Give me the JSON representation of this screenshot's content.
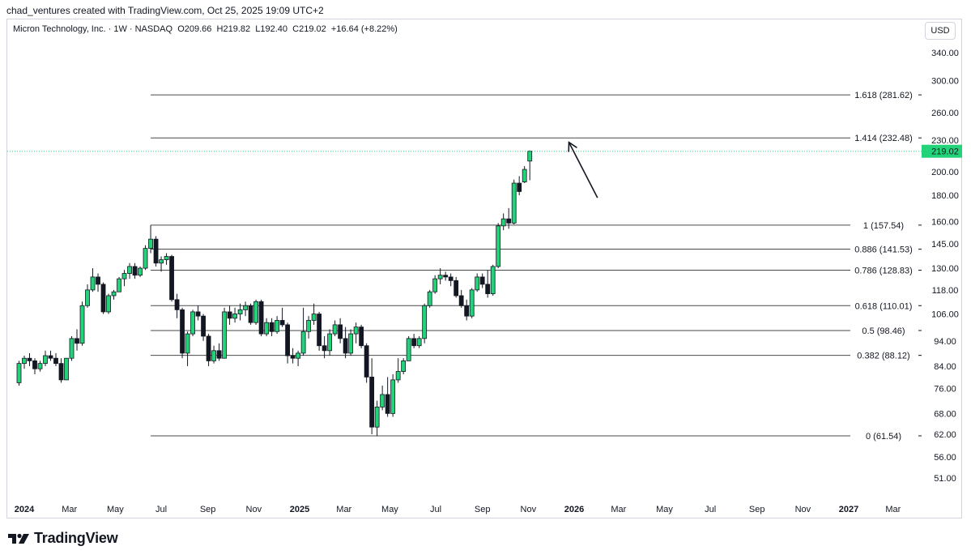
{
  "header": {
    "credit": "chad_ventures created with TradingView.com, Oct 25, 2025 19:09 UTC+2"
  },
  "legend": {
    "symbol": "Micron Technology, Inc.",
    "interval": "1W",
    "exchange": "NASDAQ",
    "open": "O209.66",
    "high": "H219.82",
    "low": "L192.40",
    "close": "C219.02",
    "change": "+16.64 (+8.22%)"
  },
  "currency": "USD",
  "footer": {
    "brand": "TradingView"
  },
  "colors": {
    "up": "#22d37a",
    "down": "#131722",
    "text": "#131722",
    "fib": "#4a4a4a",
    "price_badge": "#22d37a"
  },
  "chart_data": {
    "type": "candlestick",
    "interval": "1W",
    "y_scale": "log",
    "ylim": [
      47,
      390
    ],
    "y_ticks": [
      340.0,
      300.0,
      260.0,
      230.0,
      200.0,
      180.0,
      160.0,
      145.0,
      130.0,
      118.0,
      106.0,
      94.0,
      84.0,
      76.0,
      68.0,
      62.0,
      56.0,
      51.0
    ],
    "x_labels": [
      {
        "label": "2024",
        "date": "2024-01-01",
        "bold": true
      },
      {
        "label": "Mar",
        "date": "2024-03-01",
        "bold": false
      },
      {
        "label": "May",
        "date": "2024-05-01",
        "bold": false
      },
      {
        "label": "Jul",
        "date": "2024-07-01",
        "bold": false
      },
      {
        "label": "Sep",
        "date": "2024-09-01",
        "bold": false
      },
      {
        "label": "Nov",
        "date": "2024-11-01",
        "bold": false
      },
      {
        "label": "2025",
        "date": "2025-01-01",
        "bold": true
      },
      {
        "label": "Mar",
        "date": "2025-03-01",
        "bold": false
      },
      {
        "label": "May",
        "date": "2025-05-01",
        "bold": false
      },
      {
        "label": "Jul",
        "date": "2025-07-01",
        "bold": false
      },
      {
        "label": "Sep",
        "date": "2025-09-01",
        "bold": false
      },
      {
        "label": "Nov",
        "date": "2025-11-01",
        "bold": false
      },
      {
        "label": "2026",
        "date": "2026-01-01",
        "bold": true
      },
      {
        "label": "Mar",
        "date": "2026-03-01",
        "bold": false
      },
      {
        "label": "May",
        "date": "2026-05-01",
        "bold": false
      },
      {
        "label": "Jul",
        "date": "2026-07-01",
        "bold": false
      },
      {
        "label": "Sep",
        "date": "2026-09-01",
        "bold": false
      },
      {
        "label": "Nov",
        "date": "2026-11-01",
        "bold": false
      },
      {
        "label": "2027",
        "date": "2027-01-01",
        "bold": true
      },
      {
        "label": "Mar",
        "date": "2027-03-01",
        "bold": false
      }
    ],
    "last_price": "219.02",
    "fib_start_date": "2024-06-17",
    "fib_levels": [
      {
        "label": "1.618 (281.62)",
        "value": 281.62
      },
      {
        "label": "1.414 (232.48)",
        "value": 232.48
      },
      {
        "label": "1 (157.54)",
        "value": 157.54
      },
      {
        "label": "0.886 (141.53)",
        "value": 141.53
      },
      {
        "label": "0.786 (128.83)",
        "value": 128.83
      },
      {
        "label": "0.618 (110.01)",
        "value": 110.01
      },
      {
        "label": "0.5 (98.46)",
        "value": 98.46
      },
      {
        "label": "0.382 (88.12)",
        "value": 88.12
      },
      {
        "label": "0 (61.54)",
        "value": 61.54
      }
    ],
    "arrow": {
      "from_date": "2026-02-01",
      "from_value": 178,
      "to_date": "2025-12-25",
      "to_value": 228
    },
    "candles": [
      {
        "date": "2023-12-25",
        "o": 78,
        "h": 86,
        "l": 77,
        "c": 85
      },
      {
        "date": "2024-01-01",
        "o": 85,
        "h": 88,
        "l": 83,
        "c": 87
      },
      {
        "date": "2024-01-08",
        "o": 87,
        "h": 89,
        "l": 84,
        "c": 86
      },
      {
        "date": "2024-01-15",
        "o": 86,
        "h": 87,
        "l": 81,
        "c": 83
      },
      {
        "date": "2024-01-22",
        "o": 83,
        "h": 86,
        "l": 82,
        "c": 85
      },
      {
        "date": "2024-01-29",
        "o": 85,
        "h": 90,
        "l": 84,
        "c": 88
      },
      {
        "date": "2024-02-05",
        "o": 88,
        "h": 90,
        "l": 86,
        "c": 87
      },
      {
        "date": "2024-02-12",
        "o": 87,
        "h": 89,
        "l": 84,
        "c": 85
      },
      {
        "date": "2024-02-19",
        "o": 85,
        "h": 87,
        "l": 78,
        "c": 79
      },
      {
        "date": "2024-02-26",
        "o": 79,
        "h": 87,
        "l": 79,
        "c": 87
      },
      {
        "date": "2024-03-04",
        "o": 87,
        "h": 96,
        "l": 86,
        "c": 95
      },
      {
        "date": "2024-03-11",
        "o": 95,
        "h": 99,
        "l": 90,
        "c": 93
      },
      {
        "date": "2024-03-18",
        "o": 93,
        "h": 112,
        "l": 92,
        "c": 110
      },
      {
        "date": "2024-03-25",
        "o": 110,
        "h": 121,
        "l": 109,
        "c": 118
      },
      {
        "date": "2024-04-01",
        "o": 118,
        "h": 130,
        "l": 117,
        "c": 125
      },
      {
        "date": "2024-04-08",
        "o": 125,
        "h": 127,
        "l": 117,
        "c": 121
      },
      {
        "date": "2024-04-15",
        "o": 121,
        "h": 122,
        "l": 106,
        "c": 107
      },
      {
        "date": "2024-04-22",
        "o": 107,
        "h": 116,
        "l": 106,
        "c": 115
      },
      {
        "date": "2024-04-29",
        "o": 115,
        "h": 118,
        "l": 113,
        "c": 117
      },
      {
        "date": "2024-05-06",
        "o": 117,
        "h": 125,
        "l": 117,
        "c": 124
      },
      {
        "date": "2024-05-13",
        "o": 124,
        "h": 129,
        "l": 120,
        "c": 127
      },
      {
        "date": "2024-05-20",
        "o": 127,
        "h": 133,
        "l": 124,
        "c": 131
      },
      {
        "date": "2024-05-27",
        "o": 131,
        "h": 133,
        "l": 124,
        "c": 126
      },
      {
        "date": "2024-06-03",
        "o": 126,
        "h": 131,
        "l": 125,
        "c": 130
      },
      {
        "date": "2024-06-10",
        "o": 130,
        "h": 144,
        "l": 129,
        "c": 142
      },
      {
        "date": "2024-06-17",
        "o": 142,
        "h": 157.5,
        "l": 139,
        "c": 148
      },
      {
        "date": "2024-06-24",
        "o": 148,
        "h": 150,
        "l": 131,
        "c": 133
      },
      {
        "date": "2024-07-01",
        "o": 133,
        "h": 137,
        "l": 128,
        "c": 135
      },
      {
        "date": "2024-07-08",
        "o": 135,
        "h": 139,
        "l": 132,
        "c": 137
      },
      {
        "date": "2024-07-15",
        "o": 137,
        "h": 138,
        "l": 112,
        "c": 113
      },
      {
        "date": "2024-07-22",
        "o": 113,
        "h": 116,
        "l": 104,
        "c": 108
      },
      {
        "date": "2024-07-29",
        "o": 108,
        "h": 109,
        "l": 87,
        "c": 89
      },
      {
        "date": "2024-08-05",
        "o": 89,
        "h": 98,
        "l": 84,
        "c": 97
      },
      {
        "date": "2024-08-12",
        "o": 97,
        "h": 108,
        "l": 96,
        "c": 107
      },
      {
        "date": "2024-08-19",
        "o": 107,
        "h": 110,
        "l": 103,
        "c": 105
      },
      {
        "date": "2024-08-26",
        "o": 105,
        "h": 106,
        "l": 94,
        "c": 96
      },
      {
        "date": "2024-09-02",
        "o": 96,
        "h": 97,
        "l": 84,
        "c": 86
      },
      {
        "date": "2024-09-09",
        "o": 86,
        "h": 92,
        "l": 85,
        "c": 90
      },
      {
        "date": "2024-09-16",
        "o": 90,
        "h": 93,
        "l": 86,
        "c": 87
      },
      {
        "date": "2024-09-23",
        "o": 87,
        "h": 109,
        "l": 87,
        "c": 107
      },
      {
        "date": "2024-09-30",
        "o": 107,
        "h": 110,
        "l": 101,
        "c": 104
      },
      {
        "date": "2024-10-07",
        "o": 104,
        "h": 109,
        "l": 102,
        "c": 106
      },
      {
        "date": "2024-10-14",
        "o": 106,
        "h": 111,
        "l": 103,
        "c": 108
      },
      {
        "date": "2024-10-21",
        "o": 108,
        "h": 112,
        "l": 105,
        "c": 110
      },
      {
        "date": "2024-10-28",
        "o": 110,
        "h": 111,
        "l": 101,
        "c": 102
      },
      {
        "date": "2024-11-04",
        "o": 102,
        "h": 113,
        "l": 101,
        "c": 112
      },
      {
        "date": "2024-11-11",
        "o": 112,
        "h": 113,
        "l": 96,
        "c": 97
      },
      {
        "date": "2024-11-18",
        "o": 97,
        "h": 104,
        "l": 96,
        "c": 102
      },
      {
        "date": "2024-11-25",
        "o": 102,
        "h": 104,
        "l": 96,
        "c": 98
      },
      {
        "date": "2024-12-02",
        "o": 98,
        "h": 105,
        "l": 97,
        "c": 103
      },
      {
        "date": "2024-12-09",
        "o": 103,
        "h": 109,
        "l": 100,
        "c": 101
      },
      {
        "date": "2024-12-16",
        "o": 101,
        "h": 102,
        "l": 85,
        "c": 88
      },
      {
        "date": "2024-12-23",
        "o": 88,
        "h": 91,
        "l": 85,
        "c": 87
      },
      {
        "date": "2024-12-30",
        "o": 87,
        "h": 90,
        "l": 84,
        "c": 89
      },
      {
        "date": "2025-01-06",
        "o": 89,
        "h": 109,
        "l": 88,
        "c": 98
      },
      {
        "date": "2025-01-13",
        "o": 98,
        "h": 105,
        "l": 95,
        "c": 103
      },
      {
        "date": "2025-01-20",
        "o": 103,
        "h": 111,
        "l": 101,
        "c": 106
      },
      {
        "date": "2025-01-27",
        "o": 106,
        "h": 107,
        "l": 90,
        "c": 92
      },
      {
        "date": "2025-02-03",
        "o": 92,
        "h": 96,
        "l": 87,
        "c": 90
      },
      {
        "date": "2025-02-10",
        "o": 90,
        "h": 99,
        "l": 88,
        "c": 97
      },
      {
        "date": "2025-02-17",
        "o": 97,
        "h": 103,
        "l": 96,
        "c": 101
      },
      {
        "date": "2025-02-24",
        "o": 101,
        "h": 104,
        "l": 93,
        "c": 95
      },
      {
        "date": "2025-03-03",
        "o": 95,
        "h": 100,
        "l": 87,
        "c": 89
      },
      {
        "date": "2025-03-10",
        "o": 89,
        "h": 99,
        "l": 88,
        "c": 97
      },
      {
        "date": "2025-03-17",
        "o": 97,
        "h": 102,
        "l": 93,
        "c": 100
      },
      {
        "date": "2025-03-24",
        "o": 100,
        "h": 101,
        "l": 91,
        "c": 92
      },
      {
        "date": "2025-03-31",
        "o": 92,
        "h": 93,
        "l": 78,
        "c": 80
      },
      {
        "date": "2025-04-07",
        "o": 80,
        "h": 87,
        "l": 62,
        "c": 64
      },
      {
        "date": "2025-04-14",
        "o": 64,
        "h": 72,
        "l": 61.5,
        "c": 70
      },
      {
        "date": "2025-04-21",
        "o": 70,
        "h": 77,
        "l": 69,
        "c": 74
      },
      {
        "date": "2025-04-28",
        "o": 74,
        "h": 80,
        "l": 67,
        "c": 68
      },
      {
        "date": "2025-05-05",
        "o": 68,
        "h": 81,
        "l": 67,
        "c": 79
      },
      {
        "date": "2025-05-12",
        "o": 79,
        "h": 87,
        "l": 78,
        "c": 82
      },
      {
        "date": "2025-05-19",
        "o": 82,
        "h": 87,
        "l": 81,
        "c": 86
      },
      {
        "date": "2025-05-26",
        "o": 86,
        "h": 96,
        "l": 86,
        "c": 95
      },
      {
        "date": "2025-06-02",
        "o": 95,
        "h": 97,
        "l": 91,
        "c": 92
      },
      {
        "date": "2025-06-09",
        "o": 92,
        "h": 96,
        "l": 91,
        "c": 95
      },
      {
        "date": "2025-06-16",
        "o": 95,
        "h": 111,
        "l": 93,
        "c": 110
      },
      {
        "date": "2025-06-23",
        "o": 110,
        "h": 118,
        "l": 109,
        "c": 117
      },
      {
        "date": "2025-06-30",
        "o": 117,
        "h": 126,
        "l": 116,
        "c": 124
      },
      {
        "date": "2025-07-07",
        "o": 124,
        "h": 130,
        "l": 121,
        "c": 126
      },
      {
        "date": "2025-07-14",
        "o": 126,
        "h": 128,
        "l": 123,
        "c": 125
      },
      {
        "date": "2025-07-21",
        "o": 125,
        "h": 127,
        "l": 120,
        "c": 123
      },
      {
        "date": "2025-07-28",
        "o": 123,
        "h": 125,
        "l": 114,
        "c": 115
      },
      {
        "date": "2025-08-04",
        "o": 115,
        "h": 118,
        "l": 109,
        "c": 110
      },
      {
        "date": "2025-08-11",
        "o": 110,
        "h": 113,
        "l": 103,
        "c": 105
      },
      {
        "date": "2025-08-18",
        "o": 105,
        "h": 119,
        "l": 104,
        "c": 118
      },
      {
        "date": "2025-08-25",
        "o": 118,
        "h": 127,
        "l": 117,
        "c": 125
      },
      {
        "date": "2025-09-01",
        "o": 125,
        "h": 127,
        "l": 119,
        "c": 121
      },
      {
        "date": "2025-09-08",
        "o": 121,
        "h": 129,
        "l": 114,
        "c": 116
      },
      {
        "date": "2025-09-15",
        "o": 116,
        "h": 132,
        "l": 115,
        "c": 131
      },
      {
        "date": "2025-09-22",
        "o": 131,
        "h": 159,
        "l": 130,
        "c": 157
      },
      {
        "date": "2025-09-29",
        "o": 157,
        "h": 166,
        "l": 154,
        "c": 162
      },
      {
        "date": "2025-10-06",
        "o": 162,
        "h": 170,
        "l": 155,
        "c": 159
      },
      {
        "date": "2025-10-13",
        "o": 159,
        "h": 193,
        "l": 158,
        "c": 190
      },
      {
        "date": "2025-10-20",
        "o": 190,
        "h": 196,
        "l": 180,
        "c": 183
      },
      {
        "date": "2025-10-27",
        "o": 191,
        "h": 205,
        "l": 190,
        "c": 202
      },
      {
        "date": "2025-11-03",
        "o": 209.66,
        "h": 219.82,
        "l": 192.4,
        "c": 219.02
      }
    ]
  }
}
